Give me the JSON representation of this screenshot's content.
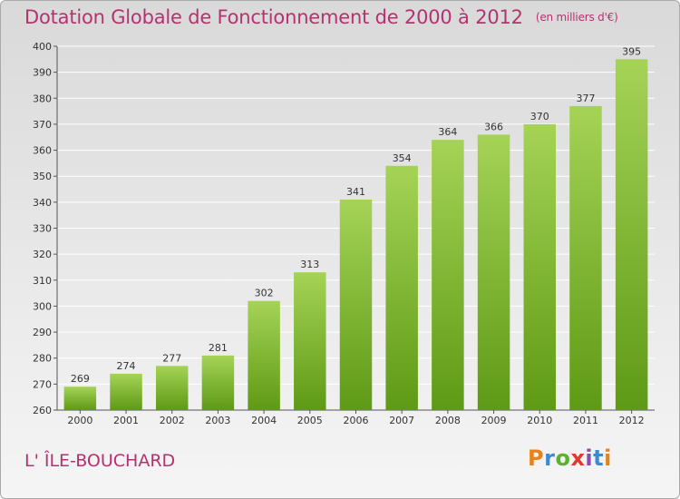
{
  "title": "Dotation Globale de Fonctionnement de 2000 à 2012",
  "unit": "(en milliers d'€)",
  "place": "L' ÎLE-BOUCHARD",
  "logo": {
    "text": "Proxiti",
    "letters": [
      "P",
      "r",
      "o",
      "x",
      "i",
      "t",
      "i"
    ],
    "colors": [
      "#e8821c",
      "#3c8ad6",
      "#5ab22e",
      "#e23a2a",
      "#8d4bb0",
      "#3c8ad6",
      "#e8821c"
    ]
  },
  "colors": {
    "title": "#b5326f",
    "bar_top": "#a5d356",
    "bar_bottom": "#5e9a15",
    "grid": "#ffffff"
  },
  "chart_data": {
    "type": "bar",
    "title": "Dotation Globale de Fonctionnement de 2000 à 2012",
    "categories": [
      "2000",
      "2001",
      "2002",
      "2003",
      "2004",
      "2005",
      "2006",
      "2007",
      "2008",
      "2009",
      "2010",
      "2011",
      "2012"
    ],
    "values": [
      269,
      274,
      277,
      281,
      302,
      313,
      341,
      354,
      364,
      366,
      370,
      377,
      395
    ],
    "ylim": [
      260,
      400
    ],
    "yticks": [
      260,
      270,
      280,
      290,
      300,
      310,
      320,
      330,
      340,
      350,
      360,
      370,
      380,
      390,
      400
    ],
    "grid": true,
    "data_labels": true
  }
}
